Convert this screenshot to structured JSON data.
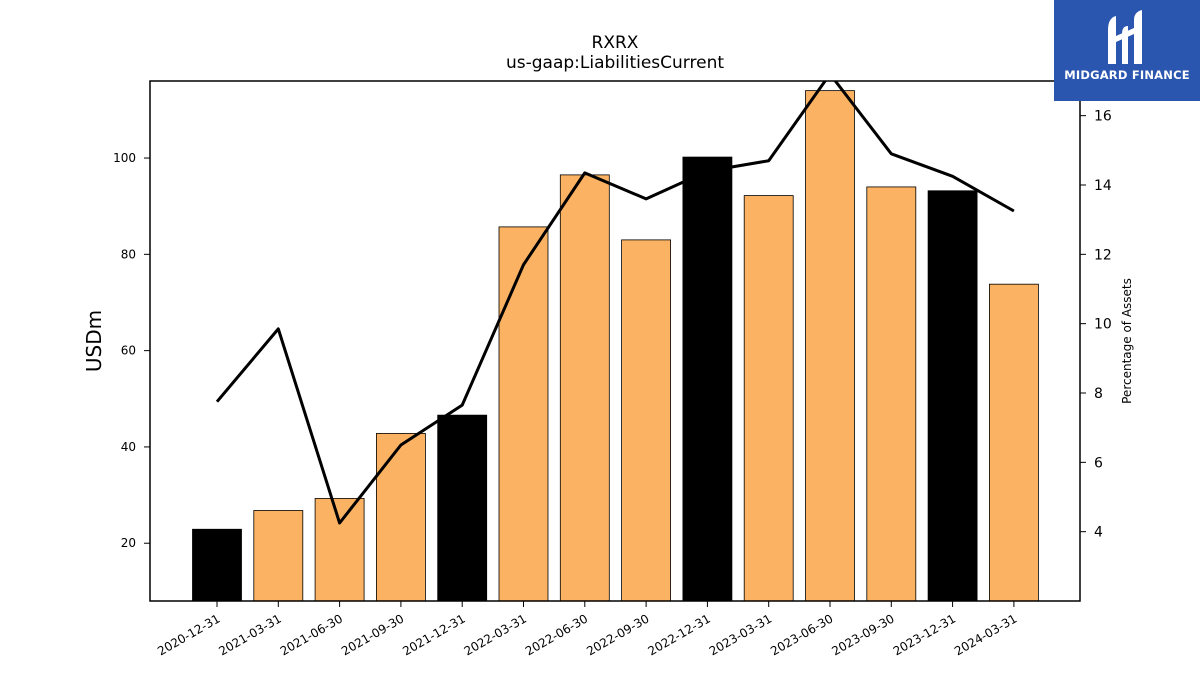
{
  "chart_data": {
    "type": "bar",
    "title": "RXRX",
    "subtitle": "us-gaap:LiabilitiesCurrent",
    "ylabel": "USDm",
    "y2label": "Percentage of Assets",
    "categories": [
      "2020-12-31",
      "2021-03-31",
      "2021-06-30",
      "2021-09-30",
      "2021-12-31",
      "2022-03-31",
      "2022-06-30",
      "2022-09-30",
      "2022-12-31",
      "2023-03-31",
      "2023-06-30",
      "2023-09-30",
      "2023-12-31",
      "2024-03-31"
    ],
    "series": [
      {
        "values": [
          22.9,
          26.8,
          29.3,
          42.8,
          46.6,
          85.7,
          96.5,
          83.0,
          100.2,
          92.2,
          114.0,
          94.0,
          93.2,
          73.8
        ]
      },
      {
        "axis": "right",
        "values": [
          7.75,
          9.85,
          4.25,
          6.5,
          7.65,
          11.7,
          14.35,
          13.6,
          14.4,
          14.7,
          17.2,
          14.9,
          14.25,
          13.25
        ]
      }
    ],
    "bar_colors": [
      "#000000",
      "#fbb262",
      "#fbb262",
      "#fbb262",
      "#000000",
      "#fbb262",
      "#fbb262",
      "#fbb262",
      "#000000",
      "#fbb262",
      "#fbb262",
      "#fbb262",
      "#000000",
      "#fbb262"
    ],
    "line_color": "#000000",
    "ylim": [
      8,
      116
    ],
    "yticks": [
      20,
      40,
      60,
      80,
      100
    ],
    "y2lim": [
      2,
      17
    ],
    "y2ticks": [
      4,
      6,
      8,
      10,
      12,
      14,
      16
    ],
    "grid": false
  },
  "logo": {
    "text": "MIDGARD FINANCE"
  }
}
